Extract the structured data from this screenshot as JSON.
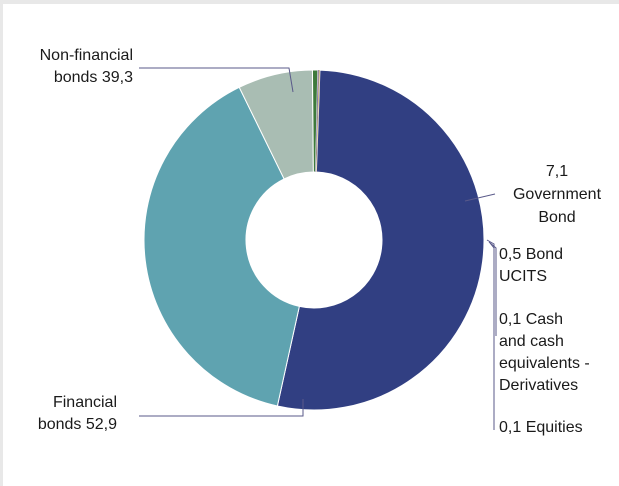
{
  "chart_data": {
    "type": "pie",
    "style": "donut",
    "title": "",
    "slices": [
      {
        "value": 52.9,
        "value_label": "52,9",
        "name_lines": [
          "Financial",
          "bonds"
        ],
        "color": "#313f82"
      },
      {
        "value": 39.3,
        "value_label": "39,3",
        "name_lines": [
          "Non-financial",
          "bonds"
        ],
        "color": "#5fa3b0"
      },
      {
        "value": 7.1,
        "value_label": "7,1",
        "name_lines": [
          "Government",
          "Bond"
        ],
        "color": "#a9bdb3"
      },
      {
        "value": 0.5,
        "value_label": "0,5",
        "name_lines": [
          "Bond",
          "UCITS"
        ],
        "color": "#3d7a3b"
      },
      {
        "value": 0.1,
        "value_label": "0,1",
        "name_lines": [
          "Cash",
          "and cash",
          "equivalents -",
          "Derivatives"
        ],
        "color": "#7a6a9a"
      },
      {
        "value": 0.1,
        "value_label": "0,1",
        "name_lines": [
          "Equities"
        ],
        "color": "#c9b27a"
      }
    ],
    "legend": "none (leader-line labels)"
  }
}
